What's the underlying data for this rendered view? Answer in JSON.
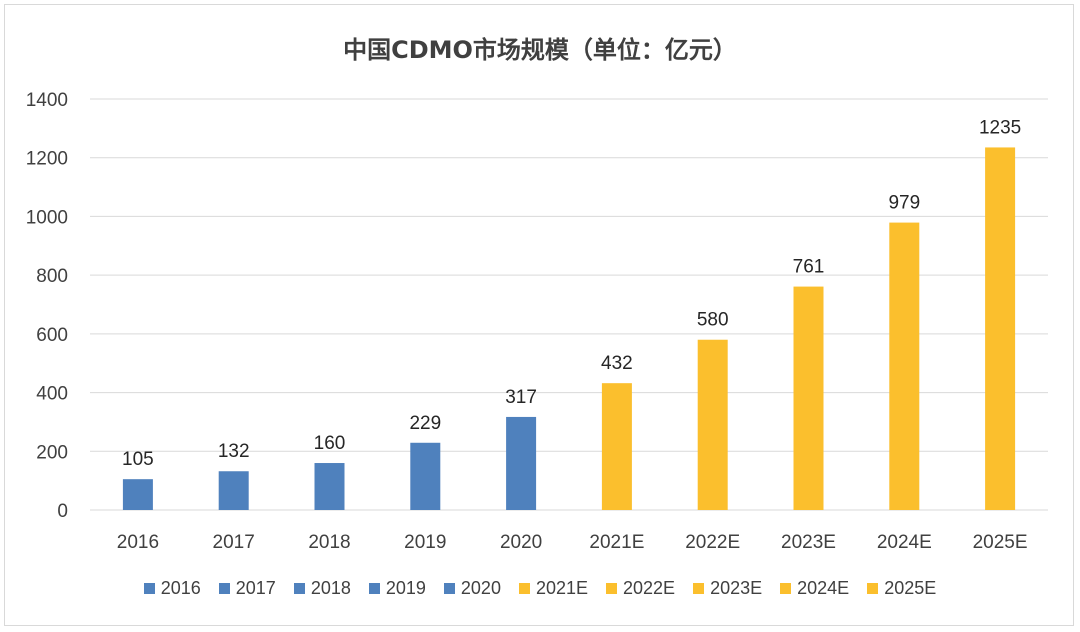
{
  "chart_data": {
    "type": "bar",
    "title": "中国CDMO市场规模（单位：亿元）",
    "categories": [
      "2016",
      "2017",
      "2018",
      "2019",
      "2020",
      "2021E",
      "2022E",
      "2023E",
      "2024E",
      "2025E"
    ],
    "values": [
      105,
      132,
      160,
      229,
      317,
      432,
      580,
      761,
      979,
      1235
    ],
    "colors": [
      "#4f81bd",
      "#4f81bd",
      "#4f81bd",
      "#4f81bd",
      "#4f81bd",
      "#fbbf2d",
      "#fbbf2d",
      "#fbbf2d",
      "#fbbf2d",
      "#fbbf2d"
    ],
    "ylim": [
      0,
      1400
    ],
    "yticks": [
      0,
      200,
      400,
      600,
      800,
      1000,
      1200,
      1400
    ],
    "xlabel": "",
    "ylabel": "",
    "grid": true,
    "legend": {
      "placement": "bottom",
      "entries": [
        "2016",
        "2017",
        "2018",
        "2019",
        "2020",
        "2021E",
        "2022E",
        "2023E",
        "2024E",
        "2025E"
      ]
    }
  }
}
